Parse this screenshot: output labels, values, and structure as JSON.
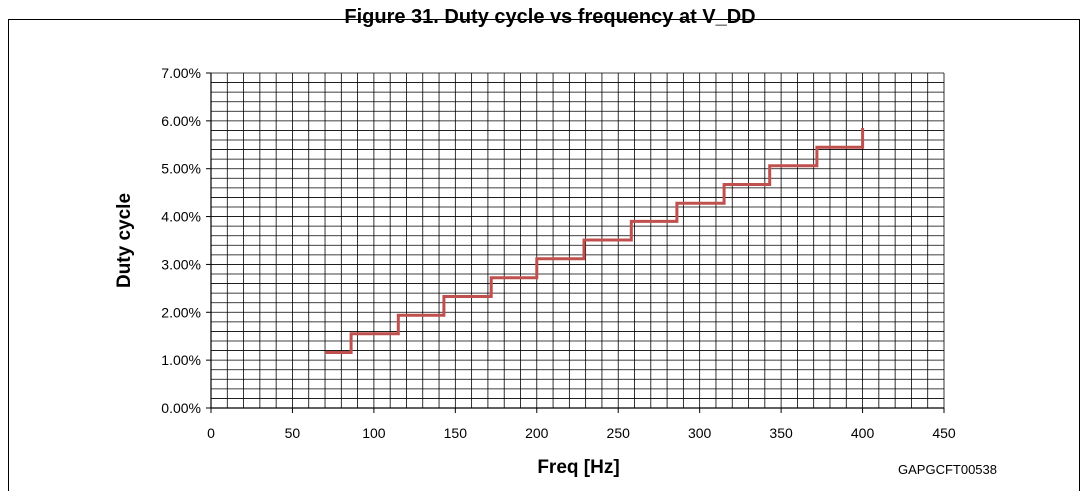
{
  "caption": "Figure 31. Duty cycle vs frequency at V_DD",
  "figure_code": "GAPGCFT00538",
  "chart_data": {
    "type": "line",
    "title": "",
    "xlabel": "Freq [Hz]",
    "ylabel": "Duty cycle",
    "xlim": [
      0,
      450
    ],
    "ylim": [
      0,
      0.07
    ],
    "x_ticks": [
      "0",
      "50",
      "100",
      "150",
      "200",
      "250",
      "300",
      "350",
      "400",
      "450"
    ],
    "y_ticks": [
      "0.00%",
      "1.00%",
      "2.00%",
      "3.00%",
      "4.00%",
      "5.00%",
      "6.00%",
      "7.00%"
    ],
    "grid": true,
    "legend": "none",
    "series": [
      {
        "color": "#c0504d",
        "x": [
          70,
          86,
          86,
          115,
          115,
          143,
          143,
          172,
          172,
          200,
          200,
          229,
          229,
          258,
          258,
          286,
          286,
          315,
          315,
          343,
          343,
          372,
          372,
          400,
          400
        ],
        "y": [
          0.0116,
          0.0116,
          0.0155,
          0.0155,
          0.0194,
          0.0194,
          0.0233,
          0.0233,
          0.0272,
          0.0272,
          0.0312,
          0.0312,
          0.0351,
          0.0351,
          0.039,
          0.039,
          0.0428,
          0.0428,
          0.0467,
          0.0467,
          0.0506,
          0.0506,
          0.0545,
          0.0545,
          0.0585
        ]
      }
    ]
  }
}
